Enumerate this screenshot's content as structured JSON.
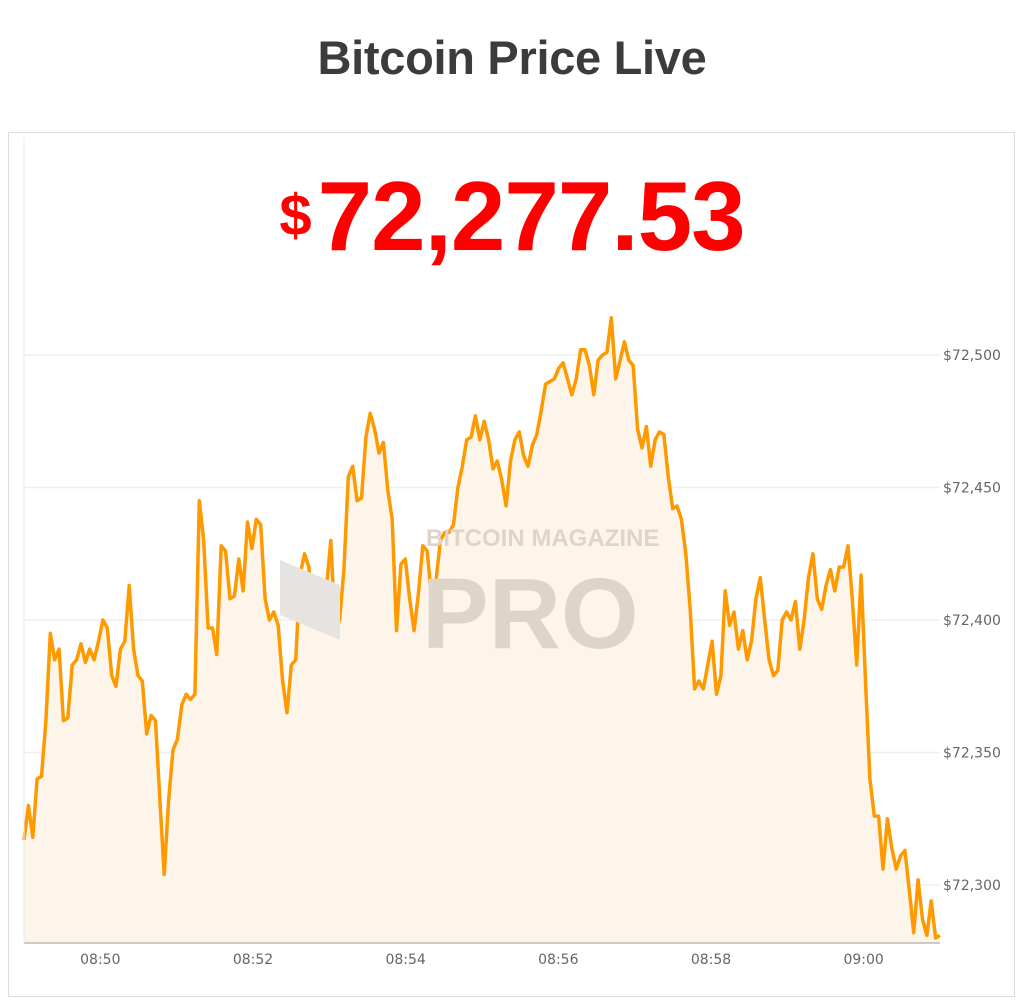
{
  "header": {
    "title": "Bitcoin Price Live"
  },
  "price": {
    "currency_symbol": "$",
    "value": "72,277.53",
    "color": "#ff0000"
  },
  "watermark": {
    "line1": "BITCOIN MAGAZINE",
    "line2": "PRO"
  },
  "chart_data": {
    "type": "area",
    "title": "",
    "xlabel": "",
    "ylabel": "",
    "line_color": "#ff9900",
    "fill_color": "#fdf5ea",
    "grid": true,
    "xlim": [
      "08:49:00",
      "09:01:00"
    ],
    "ylim": [
      72278,
      72530
    ],
    "x_ticks": [
      "08:50",
      "08:52",
      "08:54",
      "08:56",
      "08:58",
      "09:00"
    ],
    "y_ticks": [
      72300,
      72350,
      72400,
      72450,
      72500
    ],
    "y_tick_labels": [
      "$72,300",
      "$72,350",
      "$72,400",
      "$72,450",
      "$72,500"
    ],
    "y_axis_position": "right",
    "series": [
      {
        "values": [
          72317,
          72330,
          72318,
          72340,
          72341,
          72362,
          72395,
          72385,
          72389,
          72362,
          72363,
          72383,
          72385,
          72391,
          72384,
          72389,
          72385,
          72392,
          72400,
          72397,
          72379,
          72375,
          72389,
          72392,
          72413,
          72389,
          72379,
          72377,
          72357,
          72364,
          72362,
          72332,
          72304,
          72332,
          72351,
          72355,
          72368,
          72372,
          72370,
          72372,
          72445,
          72430,
          72397,
          72397,
          72387,
          72428,
          72426,
          72408,
          72409,
          72423,
          72411,
          72437,
          72427,
          72438,
          72436,
          72408,
          72400,
          72403,
          72398,
          72377,
          72365,
          72383,
          72385,
          72417,
          72425,
          72420,
          72400,
          72401,
          72413,
          72412,
          72430,
          72396,
          72400,
          72419,
          72454,
          72458,
          72445,
          72446,
          72469,
          72478,
          72472,
          72463,
          72467,
          72449,
          72438,
          72396,
          72421,
          72423,
          72408,
          72396,
          72410,
          72428,
          72426,
          72408,
          72415,
          72430,
          72433,
          72433,
          72436,
          72450,
          72458,
          72468,
          72469,
          72477,
          72468,
          72475,
          72468,
          72457,
          72460,
          72453,
          72443,
          72460,
          72468,
          72471,
          72462,
          72458,
          72466,
          72470,
          72479,
          72489,
          72490,
          72491,
          72495,
          72497,
          72491,
          72485,
          72491,
          72502,
          72502,
          72496,
          72485,
          72498,
          72500,
          72501,
          72514,
          72491,
          72498,
          72505,
          72498,
          72496,
          72472,
          72465,
          72473,
          72458,
          72468,
          72471,
          72470,
          72454,
          72442,
          72443,
          72438,
          72425,
          72404,
          72374,
          72377,
          72374,
          72383,
          72392,
          72372,
          72379,
          72411,
          72398,
          72403,
          72389,
          72396,
          72385,
          72392,
          72408,
          72416,
          72400,
          72385,
          72379,
          72381,
          72400,
          72403,
          72400,
          72407,
          72389,
          72400,
          72416,
          72425,
          72408,
          72404,
          72413,
          72419,
          72411,
          72420,
          72420,
          72428,
          72408,
          72383,
          72417,
          72377,
          72340,
          72326,
          72326,
          72306,
          72325,
          72314,
          72306,
          72311,
          72313,
          72298,
          72282,
          72302,
          72287,
          72281,
          72294,
          72280,
          72281
        ]
      }
    ]
  }
}
